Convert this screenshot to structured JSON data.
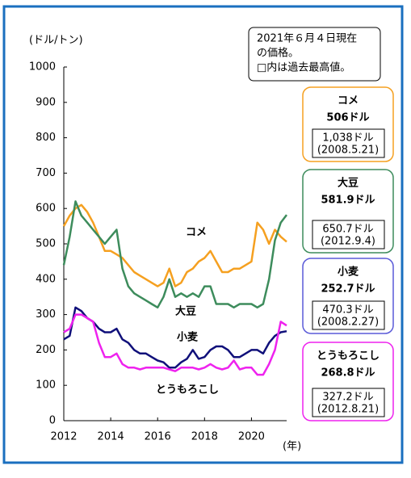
{
  "chart_data": {
    "type": "line",
    "y_label": "(ドル/トン)",
    "x_label": "(年)",
    "note": [
      "2021年６月４日現在",
      "の価格。",
      "□内は過去最高値。"
    ],
    "xlim": [
      2012,
      2021.5
    ],
    "xticks": [
      2012,
      2014,
      2016,
      2018,
      2020
    ],
    "ylim": [
      0,
      1000
    ],
    "yticks": [
      0,
      100,
      200,
      300,
      400,
      500,
      600,
      700,
      800,
      900,
      1000
    ],
    "x": [
      2012,
      2012.25,
      2012.5,
      2012.75,
      2013,
      2013.25,
      2013.5,
      2013.75,
      2014,
      2014.25,
      2014.5,
      2014.75,
      2015,
      2015.25,
      2015.5,
      2015.75,
      2016,
      2016.25,
      2016.5,
      2016.75,
      2017,
      2017.25,
      2017.5,
      2017.75,
      2018,
      2018.25,
      2018.5,
      2018.75,
      2019,
      2019.25,
      2019.5,
      2019.75,
      2020,
      2020.25,
      2020.5,
      2020.75,
      2021,
      2021.25,
      2021.5
    ],
    "series": [
      {
        "name": "コメ",
        "color": "#f5a020",
        "current_label": "506ドル",
        "record_label": "1,038ドル",
        "record_date": "(2008.5.21)",
        "values": [
          550,
          580,
          600,
          610,
          590,
          560,
          520,
          480,
          480,
          470,
          460,
          440,
          420,
          410,
          400,
          390,
          380,
          390,
          430,
          380,
          390,
          420,
          430,
          450,
          460,
          480,
          450,
          420,
          420,
          430,
          430,
          440,
          450,
          560,
          540,
          500,
          540,
          520,
          506
        ]
      },
      {
        "name": "大豆",
        "color": "#3d8c5c",
        "current_label": "581.9ドル",
        "record_label": "650.7ドル",
        "record_date": "(2012.9.4)",
        "values": [
          440,
          520,
          620,
          580,
          560,
          540,
          520,
          500,
          520,
          540,
          430,
          380,
          360,
          350,
          340,
          330,
          320,
          350,
          400,
          350,
          360,
          350,
          360,
          350,
          380,
          380,
          330,
          330,
          330,
          320,
          330,
          330,
          330,
          320,
          330,
          400,
          510,
          560,
          582
        ]
      },
      {
        "name": "小麦",
        "color": "#10107a",
        "border": "#5a5ad8",
        "current_label": "252.7ドル",
        "record_label": "470.3ドル",
        "record_date": "(2008.2.27)",
        "values": [
          230,
          240,
          320,
          310,
          290,
          280,
          260,
          250,
          250,
          260,
          230,
          220,
          200,
          190,
          190,
          180,
          170,
          165,
          150,
          150,
          165,
          175,
          200,
          175,
          180,
          200,
          210,
          210,
          200,
          180,
          180,
          190,
          200,
          200,
          190,
          220,
          240,
          250,
          253
        ]
      },
      {
        "name": "とうもろこし",
        "color": "#ee22ee",
        "current_label": "268.8ドル",
        "record_label": "327.2ドル",
        "record_date": "(2012.8.21)",
        "values": [
          250,
          260,
          300,
          300,
          290,
          280,
          220,
          180,
          180,
          190,
          160,
          150,
          150,
          145,
          150,
          150,
          150,
          150,
          145,
          140,
          150,
          150,
          150,
          145,
          150,
          160,
          150,
          145,
          150,
          170,
          145,
          150,
          150,
          130,
          130,
          160,
          200,
          280,
          269
        ]
      }
    ]
  }
}
